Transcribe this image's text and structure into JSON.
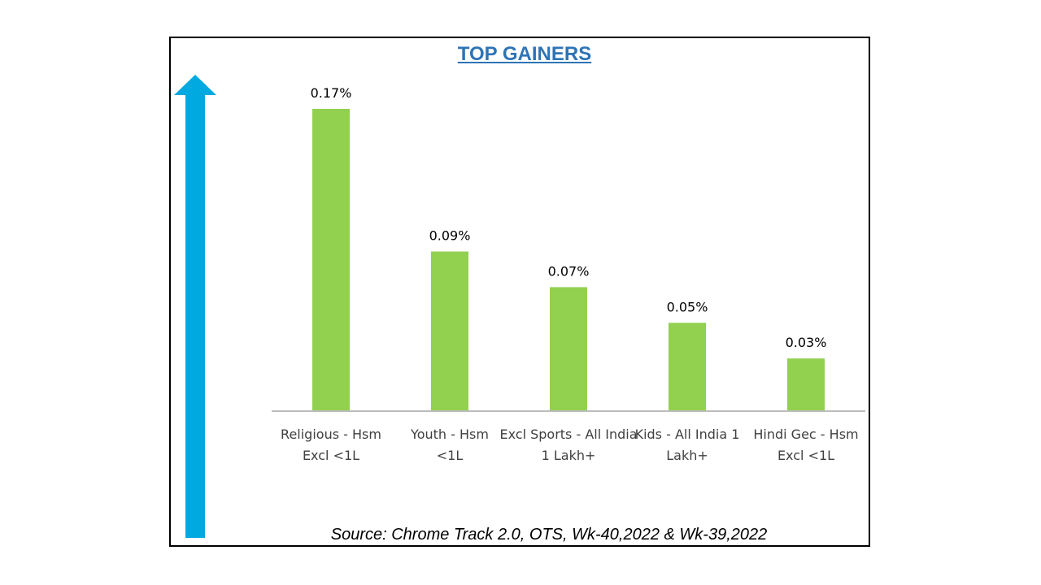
{
  "chart_data": {
    "type": "bar",
    "title": "TOP GAINERS",
    "categories": [
      [
        "Religious - Hsm",
        "Excl <1L"
      ],
      [
        "Youth - Hsm",
        "<1L"
      ],
      [
        "Excl Sports - All India",
        "1 Lakh+"
      ],
      [
        "Kids - All India 1",
        "Lakh+"
      ],
      [
        "Hindi Gec - Hsm",
        "Excl <1L"
      ]
    ],
    "values": [
      0.17,
      0.09,
      0.07,
      0.05,
      0.03
    ],
    "value_labels": [
      "0.17%",
      "0.09%",
      "0.07%",
      "0.05%",
      "0.03%"
    ],
    "ylim": [
      0,
      0.17
    ],
    "xlabel": "",
    "ylabel": "",
    "grid": false,
    "legend": "none"
  },
  "colors": {
    "bar": "#92d050",
    "arrow": "#00a9e0",
    "title": "#2e74b5",
    "axis": "#a6a6a6"
  },
  "decorations": {
    "arrow_icon": "up-arrow-icon"
  },
  "footer": {
    "source": "Source: Chrome Track 2.0, OTS, Wk-40,2022 & Wk-39,2022"
  }
}
